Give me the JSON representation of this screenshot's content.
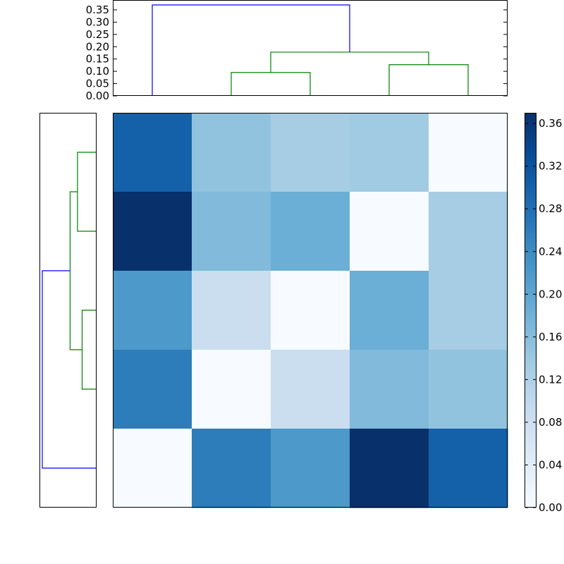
{
  "chart_data": [
    {
      "type": "dendrogram",
      "orientation": "top",
      "ylim": [
        0,
        0.39
      ],
      "yticks": [
        "0.00",
        "0.05",
        "0.10",
        "0.15",
        "0.20",
        "0.25",
        "0.30",
        "0.35"
      ],
      "leaf_count": 5,
      "links": [
        {
          "left": 2,
          "right": 3,
          "height": 0.095,
          "color": "#008000"
        },
        {
          "left": 4,
          "right": 5,
          "height": 0.127,
          "color": "#008000"
        },
        {
          "left": 2.5,
          "right": 4.5,
          "height": 0.178,
          "color": "#008000",
          "left_base": 0.095,
          "right_base": 0.127
        },
        {
          "left": 1,
          "right": 3.5,
          "height": 0.37,
          "color": "#0000ff",
          "left_base": 0,
          "right_base": 0.178
        }
      ]
    },
    {
      "type": "dendrogram",
      "orientation": "left",
      "leaf_count": 5,
      "links": [
        {
          "left": 1,
          "right": 2,
          "height": 0.127,
          "color": "#008000"
        },
        {
          "left": 3,
          "right": 4,
          "height": 0.095,
          "color": "#008000"
        },
        {
          "left": 1.5,
          "right": 3.5,
          "height": 0.178,
          "color": "#008000",
          "left_base": 0.127,
          "right_base": 0.095
        },
        {
          "left": 2.5,
          "right": 5,
          "height": 0.37,
          "color": "#0000ff",
          "left_base": 0.178,
          "right_base": 0
        }
      ]
    },
    {
      "type": "heatmap",
      "colormap": "Blues",
      "vmin": 0.0,
      "vmax": 0.37,
      "rows": 5,
      "cols": 5,
      "values": [
        [
          0.3,
          0.15,
          0.13,
          0.135,
          0.0
        ],
        [
          0.37,
          0.165,
          0.185,
          0.0,
          0.13
        ],
        [
          0.22,
          0.085,
          0.0,
          0.185,
          0.13
        ],
        [
          0.26,
          0.0,
          0.085,
          0.165,
          0.15
        ],
        [
          0.0,
          0.26,
          0.22,
          0.37,
          0.3
        ]
      ],
      "colorbar_ticks": [
        "0.00",
        "0.04",
        "0.08",
        "0.12",
        "0.16",
        "0.20",
        "0.24",
        "0.28",
        "0.32",
        "0.36"
      ]
    }
  ],
  "colors": {
    "cmap_stops": [
      "#f7fbff",
      "#deebf7",
      "#c6dbef",
      "#9ecae1",
      "#6baed6",
      "#4292c6",
      "#2171b5",
      "#08519c",
      "#08306b"
    ]
  }
}
